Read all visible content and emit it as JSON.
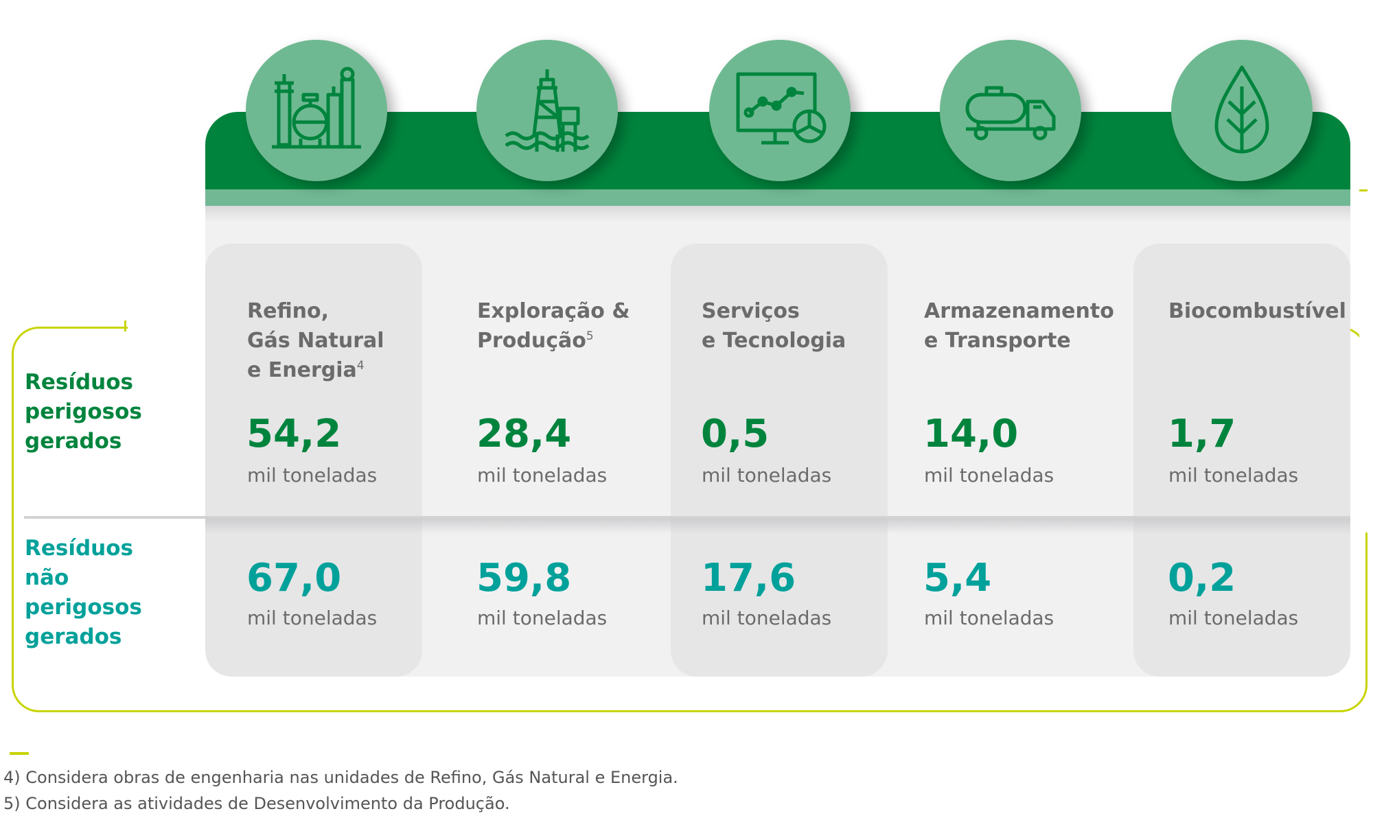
{
  "row_labels": {
    "hazardous": [
      "Resíduos",
      "perigosos",
      "gerados"
    ],
    "non_hazardous": [
      "Resíduos",
      "não",
      "perigosos",
      "gerados"
    ]
  },
  "categories": [
    {
      "title_lines": [
        "Refino,",
        "Gás Natural",
        "e Energia"
      ],
      "note": "4",
      "icon": "refinery-icon",
      "hazardous": "54,2",
      "non_hazardous": "67,0"
    },
    {
      "title_lines": [
        "Exploração &",
        "Produção"
      ],
      "note": "5",
      "icon": "oil-platform-icon",
      "hazardous": "28,4",
      "non_hazardous": "59,8"
    },
    {
      "title_lines": [
        "Serviços",
        "e Tecnologia"
      ],
      "note": "",
      "icon": "monitor-chart-icon",
      "hazardous": "0,5",
      "non_hazardous": "17,6"
    },
    {
      "title_lines": [
        "Armazenamento",
        "e Transporte"
      ],
      "note": "",
      "icon": "tanker-truck-icon",
      "hazardous": "14,0",
      "non_hazardous": "5,4"
    },
    {
      "title_lines": [
        "Biocombustível"
      ],
      "note": "",
      "icon": "leaf-icon",
      "hazardous": "1,7",
      "non_hazardous": "0,2"
    }
  ],
  "unit": "mil toneladas",
  "footnotes": [
    "4) Considera obras de engenharia nas unidades de Refino, Gás Natural e Energia.",
    "5) Considera as atividades de Desenvolvimento da Produção."
  ],
  "colors": {
    "dark_green": "#00843d",
    "light_green": "#6fb992",
    "teal": "#00a19a",
    "lime_frame": "#c8d400",
    "panel_bg": "#f1f1f2",
    "column_bg": "#e6e6e7"
  }
}
